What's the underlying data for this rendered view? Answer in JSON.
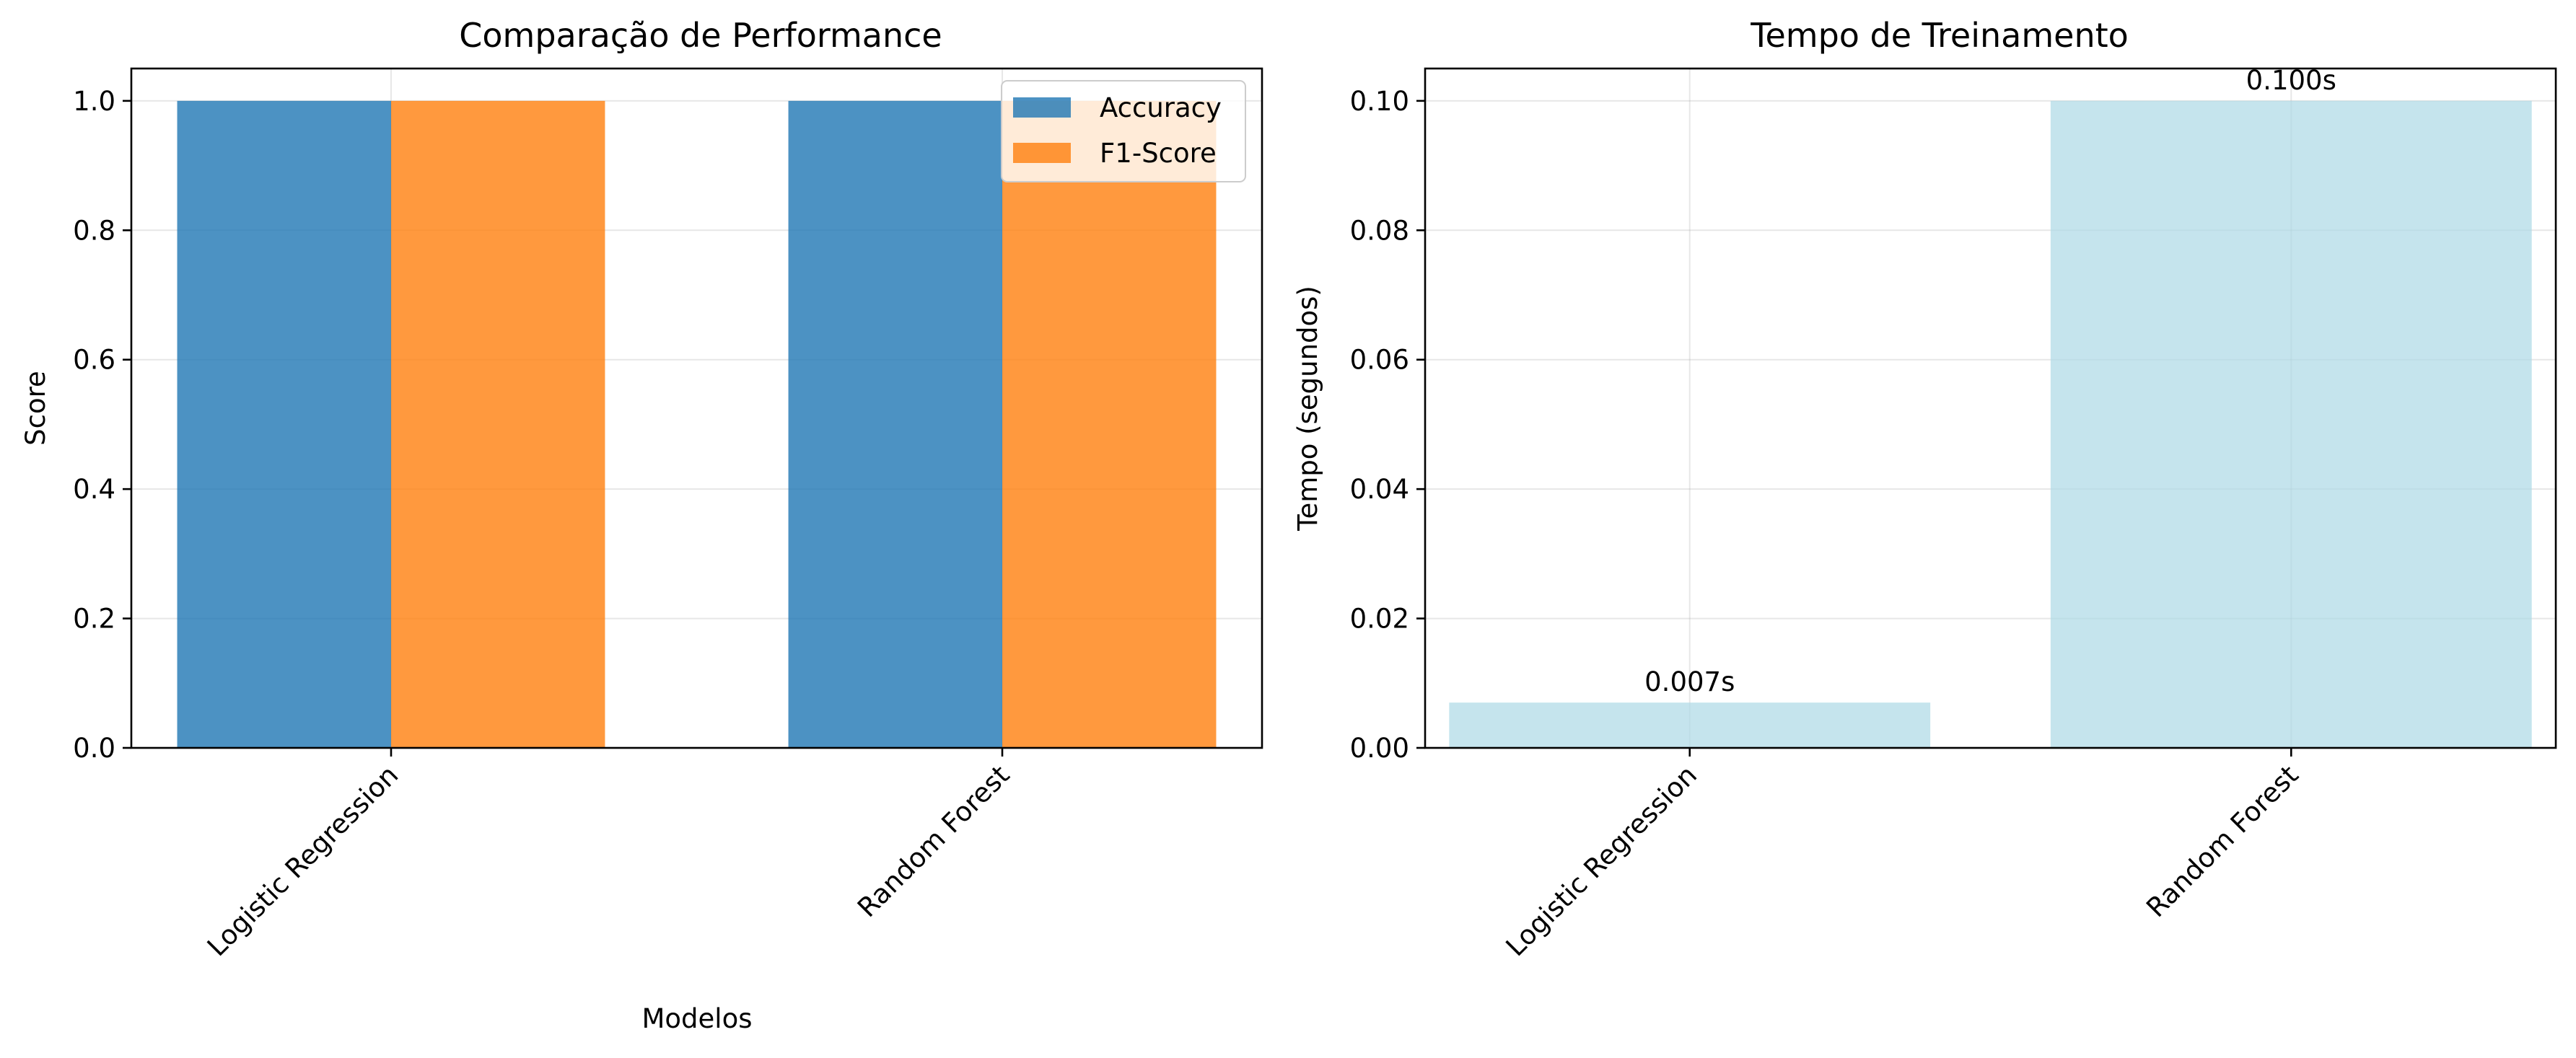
{
  "chart_data": [
    {
      "type": "bar",
      "title": "Comparação de Performance",
      "xlabel": "Modelos",
      "ylabel": "Score",
      "categories": [
        "Logistic Regression",
        "Random Forest"
      ],
      "series": [
        {
          "name": "Accuracy",
          "values": [
            1.0,
            1.0
          ],
          "color": "#1f77b4"
        },
        {
          "name": "F1-Score",
          "values": [
            1.0,
            1.0
          ],
          "color": "#ff7f0e"
        }
      ],
      "ylim": [
        0,
        1.05
      ],
      "yticks": [
        "0.0",
        "0.2",
        "0.4",
        "0.6",
        "0.8",
        "1.0"
      ],
      "grid": true,
      "legend": "top-right"
    },
    {
      "type": "bar",
      "title": "Tempo de Treinamento",
      "xlabel": "",
      "ylabel": "Tempo (segundos)",
      "categories": [
        "Logistic Regression",
        "Random Forest"
      ],
      "values": [
        0.007,
        0.1
      ],
      "data_labels": [
        "0.007s",
        "0.100s"
      ],
      "color": "#add8e6",
      "ylim": [
        0,
        0.105
      ],
      "yticks": [
        "0.00",
        "0.02",
        "0.04",
        "0.06",
        "0.08",
        "0.10"
      ],
      "grid": true
    }
  ]
}
